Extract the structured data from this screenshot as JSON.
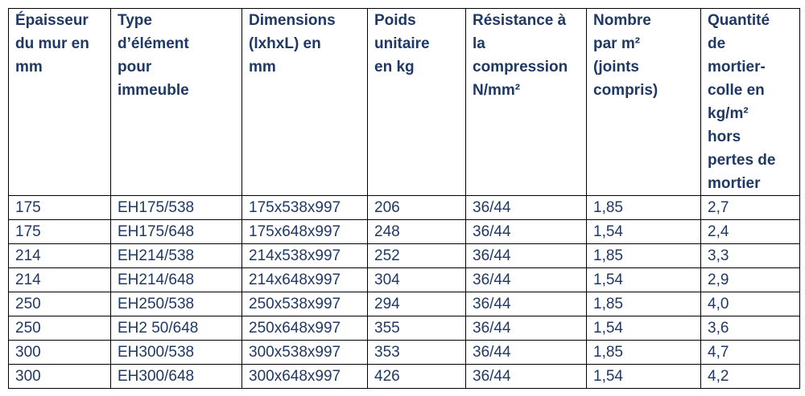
{
  "table": {
    "header": [
      [
        "Épaisseur",
        "du mur en",
        "mm"
      ],
      [
        "Type",
        "d’élément",
        "pour",
        "immeuble"
      ],
      [
        "Dimensions",
        "(lxhxL) en",
        "mm"
      ],
      [
        "Poids",
        "unitaire",
        "en kg"
      ],
      [
        "Résistance à",
        "la",
        "compression",
        "N/mm²"
      ],
      [
        "Nombre",
        "par m²",
        "(joints",
        "compris)"
      ],
      [
        "Quantité",
        "de",
        "mortier-",
        "colle en",
        "kg/m²",
        "hors",
        "pertes de",
        "mortier"
      ]
    ],
    "rows": [
      [
        "175",
        "EH175/538",
        "175x538x997",
        "206",
        "36/44",
        "1,85",
        "2,7"
      ],
      [
        "175",
        "EH175/648",
        "175x648x997",
        "248",
        "36/44",
        "1,54",
        "2,4"
      ],
      [
        "214",
        "EH214/538",
        "214x538x997",
        "252",
        "36/44",
        "1,85",
        "3,3"
      ],
      [
        "214",
        "EH214/648",
        "214x648x997",
        "304",
        "36/44",
        "1,54",
        "2,9"
      ],
      [
        "250",
        "EH250/538",
        "250x538x997",
        "294",
        "36/44",
        "1,85",
        "4,0"
      ],
      [
        "250",
        "EH2 50/648",
        "250x648x997",
        "355",
        "36/44",
        "1,54",
        "3,6"
      ],
      [
        "300",
        "EH300/538",
        "300x538x997",
        "353",
        "36/44",
        "1,85",
        "4,7"
      ],
      [
        "300",
        "EH300/648",
        "300x648x997",
        "426",
        "36/44",
        "1,54",
        "4,2"
      ]
    ]
  }
}
